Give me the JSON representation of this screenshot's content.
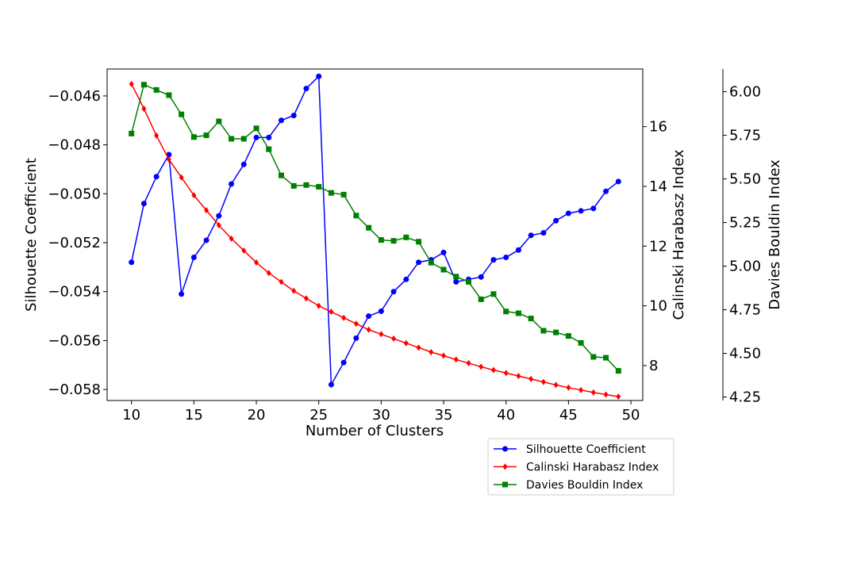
{
  "chart_data": {
    "type": "line",
    "x": [
      10,
      11,
      12,
      13,
      14,
      15,
      16,
      17,
      18,
      19,
      20,
      21,
      22,
      23,
      24,
      25,
      26,
      27,
      28,
      29,
      30,
      31,
      32,
      33,
      34,
      35,
      36,
      37,
      38,
      39,
      40,
      41,
      42,
      43,
      44,
      45,
      46,
      47,
      48,
      49
    ],
    "xlabel": "Number of Clusters",
    "xlim": [
      8.05,
      50.95
    ],
    "xticks": [
      10,
      15,
      20,
      25,
      30,
      35,
      40,
      45,
      50
    ],
    "xtick_labels": [
      "10",
      "15",
      "20",
      "25",
      "30",
      "35",
      "40",
      "45",
      "50"
    ],
    "legend_position": "below-right",
    "grid": false,
    "axes": [
      {
        "id": "left",
        "ylabel": "Silhouette Coefficient",
        "ylim": [
          -0.05845,
          -0.0449
        ],
        "yticks": [
          -0.058,
          -0.056,
          -0.054,
          -0.052,
          -0.05,
          -0.048,
          -0.046
        ],
        "ytick_labels": [
          "−0.058",
          "−0.056",
          "−0.054",
          "−0.052",
          "−0.050",
          "−0.048",
          "−0.046"
        ]
      },
      {
        "id": "right1",
        "ylabel": "Calinski Harabasz Index",
        "ylim": [
          6.83,
          17.93
        ],
        "yticks": [
          8,
          10,
          12,
          14,
          16
        ],
        "ytick_labels": [
          "8",
          "10",
          "12",
          "14",
          "16"
        ]
      },
      {
        "id": "right2",
        "ylabel": "Davies Bouldin Index",
        "ylim": [
          4.23,
          6.13
        ],
        "yticks": [
          4.25,
          4.5,
          4.75,
          5.0,
          5.25,
          5.5,
          5.75,
          6.0
        ],
        "ytick_labels": [
          "4.25",
          "4.50",
          "4.75",
          "5.00",
          "5.25",
          "5.50",
          "5.75",
          "6.00"
        ]
      }
    ],
    "series": [
      {
        "name": "Silhouette Coefficient",
        "axis": "left",
        "color": "#0000ff",
        "marker": "circle",
        "values": [
          -0.0528,
          -0.0504,
          -0.0493,
          -0.0484,
          -0.0541,
          -0.0526,
          -0.0519,
          -0.0509,
          -0.0496,
          -0.0488,
          -0.0477,
          -0.0477,
          -0.047,
          -0.0468,
          -0.0457,
          -0.0452,
          -0.0578,
          -0.0569,
          -0.0559,
          -0.055,
          -0.0548,
          -0.054,
          -0.0535,
          -0.0528,
          -0.0527,
          -0.0524,
          -0.0536,
          -0.0535,
          -0.0534,
          -0.0527,
          -0.0526,
          -0.0523,
          -0.0517,
          -0.0516,
          -0.0511,
          -0.0508,
          -0.0507,
          -0.0506,
          -0.0499,
          -0.0495
        ]
      },
      {
        "name": "Calinski Harabasz Index",
        "axis": "right1",
        "color": "#ff0000",
        "marker": "diamond",
        "values": [
          17.43,
          16.6,
          15.7,
          14.9,
          14.3,
          13.7,
          13.2,
          12.7,
          12.25,
          11.85,
          11.45,
          11.1,
          10.8,
          10.5,
          10.25,
          10.0,
          9.8,
          9.6,
          9.4,
          9.2,
          9.05,
          8.9,
          8.75,
          8.6,
          8.45,
          8.33,
          8.2,
          8.08,
          7.96,
          7.85,
          7.75,
          7.65,
          7.55,
          7.45,
          7.35,
          7.26,
          7.18,
          7.1,
          7.03,
          6.96
        ]
      },
      {
        "name": "Davies Bouldin Index",
        "axis": "right2",
        "color": "#008000",
        "marker": "square",
        "values": [
          5.76,
          6.04,
          6.01,
          5.98,
          5.87,
          5.74,
          5.75,
          5.83,
          5.73,
          5.73,
          5.79,
          5.67,
          5.52,
          5.46,
          5.465,
          5.455,
          5.42,
          5.41,
          5.29,
          5.22,
          5.15,
          5.145,
          5.165,
          5.14,
          5.02,
          4.98,
          4.94,
          4.91,
          4.81,
          4.84,
          4.74,
          4.73,
          4.7,
          4.63,
          4.62,
          4.6,
          4.56,
          4.48,
          4.475,
          4.4
        ]
      }
    ]
  }
}
